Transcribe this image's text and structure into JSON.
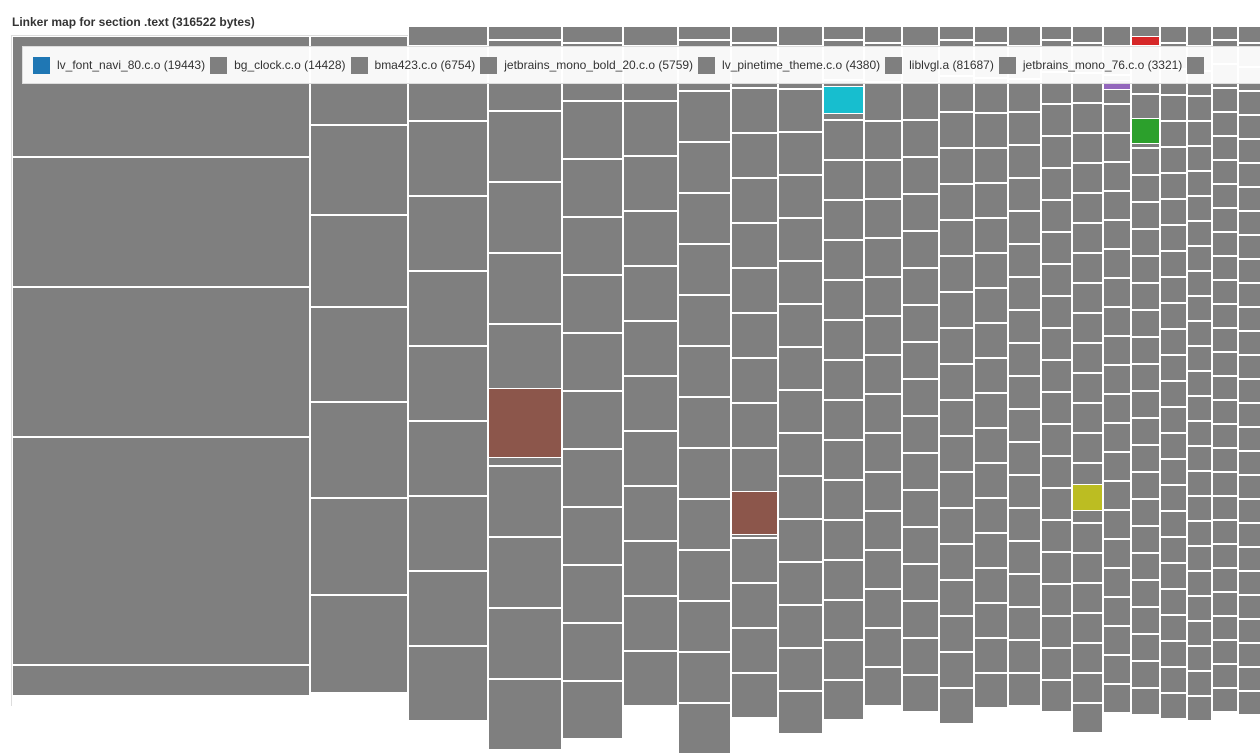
{
  "chart_data": {
    "type": "treemap",
    "title": "Linker map for section .text (316522 bytes)",
    "legend_position": "top",
    "legend": [
      {
        "label": "lv_font_navi_80.c.o (19443)",
        "color": "#1f77b4"
      },
      {
        "label": "bg_clock.c.o (14428)",
        "color": "#7f7f7f"
      },
      {
        "label": "bma423.c.o (6754)",
        "color": "#7f7f7f"
      },
      {
        "label": "jetbrains_mono_bold_20.c.o (5759)",
        "color": "#7f7f7f"
      },
      {
        "label": "lv_pinetime_theme.c.o (4380)",
        "color": "#7f7f7f"
      },
      {
        "label": "liblvgl.a (81687)",
        "color": "#7f7f7f"
      },
      {
        "label": "jetbrains_mono_76.c.o (3321)",
        "color": "#7f7f7f"
      }
    ],
    "default_color": "#7f7f7f",
    "highlight_colors": [
      "#8c564b",
      "#17becf",
      "#bcbd22",
      "#2ca02c",
      "#d62728",
      "#9467bd"
    ]
  }
}
